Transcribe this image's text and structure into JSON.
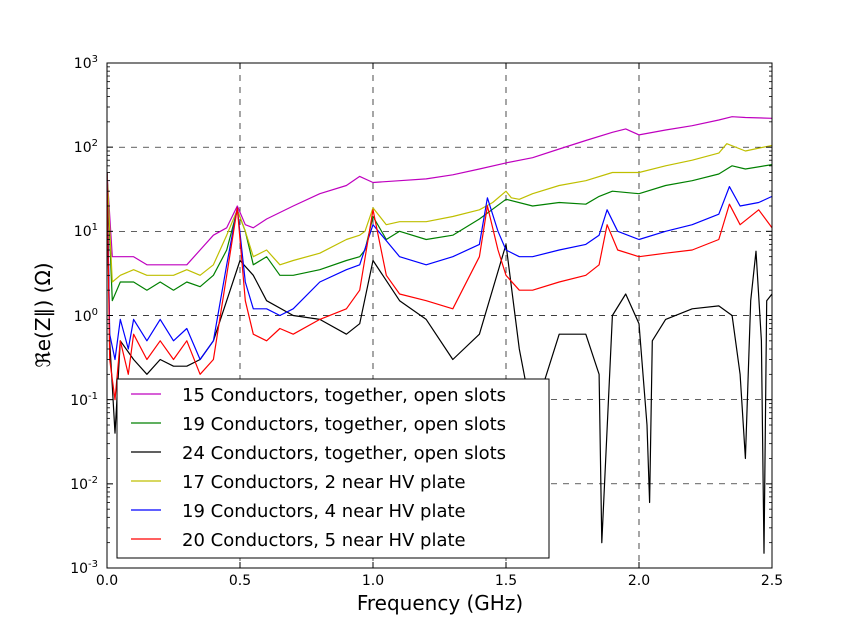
{
  "chart_data": {
    "type": "line",
    "title": "",
    "xlabel": "Frequency (GHz)",
    "ylabel": "ℜe(Z∥) (Ω)",
    "xlim": [
      0.0,
      2.5
    ],
    "ylim": [
      0.001,
      1000
    ],
    "yscale": "log",
    "grid": true,
    "legend_position": "lower-left",
    "x_ticks": [
      "0.0",
      "0.5",
      "1.0",
      "1.5",
      "2.0",
      "2.5"
    ],
    "y_tick_bases": [
      "10",
      "10",
      "10",
      "10",
      "10",
      "10",
      "10"
    ],
    "y_tick_exponents": [
      "-3",
      "-2",
      "-1",
      "0",
      "1",
      "2",
      "3"
    ],
    "series": [
      {
        "name": "15 Conductors, together, open slots",
        "color": "#bf00bf",
        "x": [
          0.0,
          0.02,
          0.05,
          0.1,
          0.15,
          0.2,
          0.25,
          0.3,
          0.35,
          0.4,
          0.45,
          0.49,
          0.52,
          0.55,
          0.6,
          0.7,
          0.8,
          0.9,
          0.95,
          1.0,
          1.1,
          1.2,
          1.3,
          1.4,
          1.5,
          1.6,
          1.7,
          1.8,
          1.9,
          1.95,
          2.0,
          2.1,
          2.2,
          2.3,
          2.35,
          2.4,
          2.5
        ],
        "y": [
          50,
          5,
          5,
          5,
          4,
          4,
          4,
          4,
          6,
          9,
          11,
          20,
          12,
          11,
          14,
          20,
          28,
          35,
          45,
          38,
          40,
          42,
          47,
          55,
          65,
          75,
          95,
          120,
          150,
          165,
          140,
          160,
          180,
          210,
          230,
          225,
          220
        ]
      },
      {
        "name": "19 Conductors, together, open slots",
        "color": "#008000",
        "x": [
          0.0,
          0.02,
          0.05,
          0.1,
          0.15,
          0.2,
          0.25,
          0.3,
          0.35,
          0.4,
          0.45,
          0.49,
          0.52,
          0.55,
          0.6,
          0.65,
          0.7,
          0.8,
          0.9,
          0.95,
          0.97,
          1.0,
          1.05,
          1.1,
          1.2,
          1.3,
          1.4,
          1.5,
          1.6,
          1.7,
          1.8,
          1.85,
          1.9,
          2.0,
          2.1,
          2.2,
          2.3,
          2.35,
          2.4,
          2.5
        ],
        "y": [
          50,
          1.5,
          2.5,
          2.5,
          2,
          2.5,
          2,
          2.5,
          2.2,
          3,
          6,
          18,
          10,
          4,
          5,
          3,
          3,
          3.5,
          4.5,
          5,
          6,
          15,
          8,
          10,
          8,
          9,
          14,
          24,
          20,
          22,
          21,
          26,
          30,
          28,
          35,
          40,
          48,
          60,
          55,
          62
        ]
      },
      {
        "name": "24 Conductors, together, open slots",
        "color": "#000000",
        "x": [
          0.0,
          0.01,
          0.03,
          0.05,
          0.1,
          0.15,
          0.2,
          0.25,
          0.3,
          0.35,
          0.4,
          0.45,
          0.5,
          0.55,
          0.6,
          0.7,
          0.8,
          0.9,
          0.95,
          1.0,
          1.1,
          1.2,
          1.3,
          1.4,
          1.5,
          1.55,
          1.6,
          1.7,
          1.8,
          1.85,
          1.86,
          1.9,
          1.95,
          2.0,
          2.03,
          2.04,
          2.05,
          2.1,
          2.2,
          2.3,
          2.35,
          2.38,
          2.4,
          2.42,
          2.44,
          2.46,
          2.47,
          2.48,
          2.5
        ],
        "y": [
          50,
          0.5,
          0.04,
          0.5,
          0.3,
          0.2,
          0.3,
          0.25,
          0.25,
          0.3,
          0.5,
          1.5,
          4.5,
          3.0,
          1.5,
          1.0,
          0.9,
          0.6,
          0.8,
          4.5,
          1.5,
          0.9,
          0.3,
          0.6,
          7,
          0.4,
          0.06,
          0.6,
          0.6,
          0.2,
          0.002,
          1.0,
          1.8,
          0.8,
          0.05,
          0.006,
          0.5,
          0.9,
          1.2,
          1.3,
          1.0,
          0.2,
          0.02,
          1.5,
          5.8,
          0.5,
          0.0015,
          1.5,
          1.8
        ]
      },
      {
        "name": "17 Conductors, 2 near HV plate",
        "color": "#bfbf00",
        "x": [
          0.0,
          0.02,
          0.05,
          0.1,
          0.15,
          0.2,
          0.25,
          0.3,
          0.35,
          0.4,
          0.45,
          0.49,
          0.52,
          0.55,
          0.6,
          0.65,
          0.7,
          0.8,
          0.9,
          0.95,
          0.97,
          1.0,
          1.05,
          1.1,
          1.2,
          1.3,
          1.4,
          1.45,
          1.5,
          1.52,
          1.55,
          1.6,
          1.7,
          1.8,
          1.9,
          2.0,
          2.1,
          2.2,
          2.3,
          2.33,
          2.4,
          2.5
        ],
        "y": [
          50,
          2.5,
          3,
          3.5,
          3,
          3,
          3,
          3.5,
          3,
          4,
          9,
          18,
          10,
          5,
          6,
          4,
          4.5,
          5.5,
          8,
          9,
          10,
          19,
          12,
          13,
          13,
          15,
          18,
          22,
          30,
          25,
          24,
          28,
          35,
          40,
          50,
          50,
          60,
          70,
          85,
          110,
          90,
          105
        ]
      },
      {
        "name": "19 Conductors, 4 near HV plate",
        "color": "#0000ff",
        "x": [
          0.0,
          0.01,
          0.03,
          0.05,
          0.08,
          0.1,
          0.15,
          0.2,
          0.25,
          0.3,
          0.35,
          0.4,
          0.45,
          0.49,
          0.52,
          0.55,
          0.6,
          0.65,
          0.7,
          0.8,
          0.9,
          0.95,
          1.0,
          1.1,
          1.2,
          1.3,
          1.4,
          1.43,
          1.47,
          1.5,
          1.55,
          1.6,
          1.7,
          1.8,
          1.85,
          1.88,
          1.92,
          2.0,
          2.1,
          2.2,
          2.3,
          2.34,
          2.38,
          2.45,
          2.5
        ],
        "y": [
          50,
          0.6,
          0.3,
          0.9,
          0.4,
          0.9,
          0.5,
          0.9,
          0.5,
          0.7,
          0.3,
          0.5,
          4,
          19,
          2.5,
          1.2,
          1.2,
          1.0,
          1.2,
          2.5,
          3.5,
          4,
          12,
          5,
          4,
          5,
          7,
          25,
          10,
          6,
          5,
          5,
          6,
          7,
          9,
          18,
          10,
          8,
          10,
          12,
          16,
          34,
          20,
          22,
          26
        ]
      },
      {
        "name": "20 Conductors, 5 near HV plate",
        "color": "#ff0000",
        "x": [
          0.0,
          0.01,
          0.03,
          0.05,
          0.08,
          0.1,
          0.15,
          0.2,
          0.25,
          0.3,
          0.35,
          0.4,
          0.45,
          0.49,
          0.52,
          0.55,
          0.6,
          0.65,
          0.7,
          0.8,
          0.9,
          0.95,
          1.0,
          1.05,
          1.1,
          1.2,
          1.3,
          1.4,
          1.43,
          1.47,
          1.5,
          1.55,
          1.6,
          1.7,
          1.8,
          1.85,
          1.88,
          1.92,
          2.0,
          2.1,
          2.2,
          2.3,
          2.34,
          2.38,
          2.45,
          2.5
        ],
        "y": [
          50,
          0.3,
          0.1,
          0.5,
          0.2,
          0.6,
          0.3,
          0.5,
          0.3,
          0.5,
          0.2,
          0.3,
          3,
          19,
          1.5,
          0.6,
          0.5,
          0.7,
          0.6,
          0.9,
          1.2,
          2,
          18,
          3,
          1.8,
          1.5,
          1.2,
          5,
          20,
          6,
          3,
          2,
          2,
          2.5,
          3,
          4,
          12,
          6,
          5,
          5.5,
          6,
          8,
          21,
          12,
          18,
          11
        ]
      }
    ]
  }
}
